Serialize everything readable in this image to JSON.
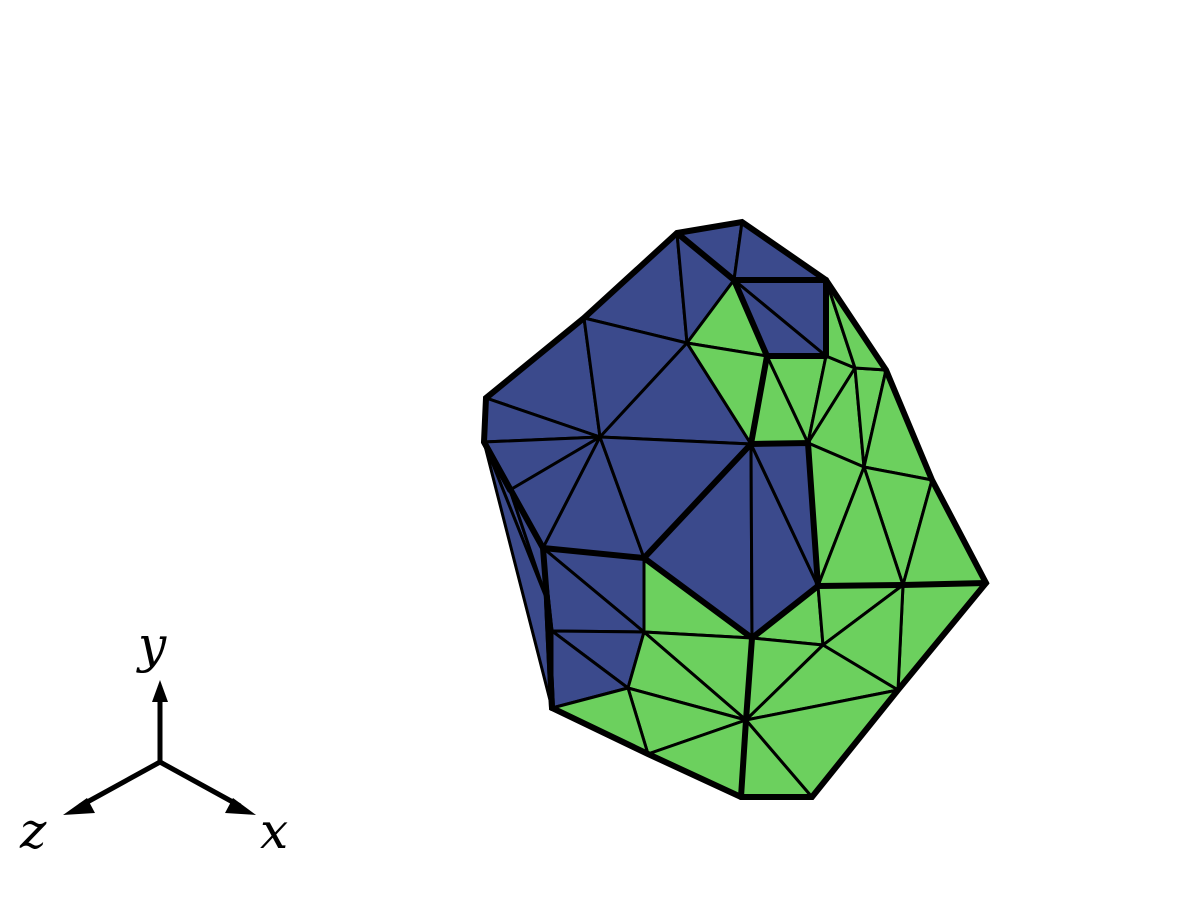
{
  "colors": {
    "region_a": "#3b4a8c",
    "region_b": "#6cd05e",
    "edge": "#000000",
    "background": "#ffffff"
  },
  "axes": {
    "x_label": "x",
    "y_label": "y",
    "z_label": "z"
  }
}
